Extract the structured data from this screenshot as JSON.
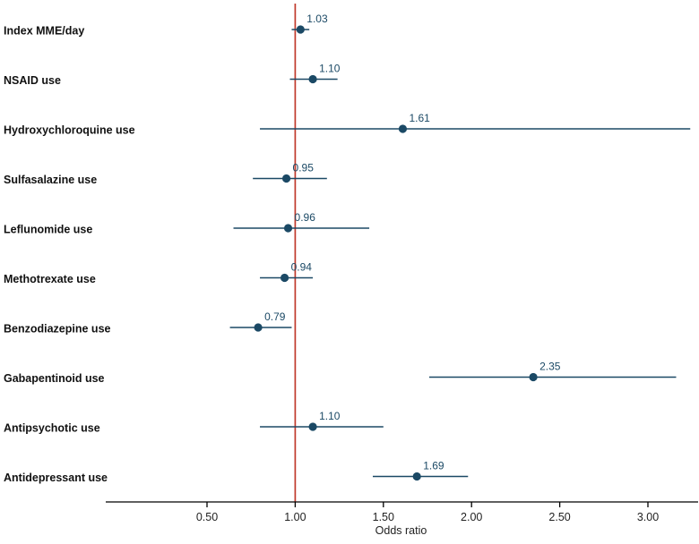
{
  "figure": {
    "kind": "forest-plot",
    "xlabel": "Odds ratio"
  },
  "chart_data": {
    "type": "scatter",
    "subtype": "forest-plot",
    "title": "",
    "xlabel": "Odds ratio",
    "ylabel": "",
    "x_ticks": [
      0.5,
      1.0,
      1.5,
      2.0,
      2.5,
      3.0
    ],
    "xlim": [
      0.08,
      3.28
    ],
    "reference_line": 1.0,
    "grid": false,
    "legend": "none",
    "rows": [
      {
        "label": "Index MME/day",
        "or": 1.03,
        "ci_low": 0.98,
        "ci_high": 1.08
      },
      {
        "label": "NSAID use",
        "or": 1.1,
        "ci_low": 0.97,
        "ci_high": 1.24
      },
      {
        "label": "Hydroxychloroquine use",
        "or": 1.61,
        "ci_low": 0.8,
        "ci_high": 3.24
      },
      {
        "label": "Sulfasalazine use",
        "or": 0.95,
        "ci_low": 0.76,
        "ci_high": 1.18
      },
      {
        "label": "Leflunomide use",
        "or": 0.96,
        "ci_low": 0.65,
        "ci_high": 1.42
      },
      {
        "label": "Methotrexate use",
        "or": 0.94,
        "ci_low": 0.8,
        "ci_high": 1.1
      },
      {
        "label": "Benzodiazepine use",
        "or": 0.79,
        "ci_low": 0.63,
        "ci_high": 0.98
      },
      {
        "label": "Gabapentinoid use",
        "or": 2.35,
        "ci_low": 1.76,
        "ci_high": 3.16
      },
      {
        "label": "Antipsychotic use",
        "or": 1.1,
        "ci_low": 0.8,
        "ci_high": 1.5
      },
      {
        "label": "Antidepressant use",
        "or": 1.69,
        "ci_low": 1.44,
        "ci_high": 1.98
      }
    ],
    "colors": {
      "marker": "#1b4965",
      "ci_line": "#1b4965",
      "value_label": "#1b4965",
      "reference": "#c0392b",
      "axis": "#000000",
      "row_label": "#111111",
      "tick_label": "#222222"
    }
  }
}
